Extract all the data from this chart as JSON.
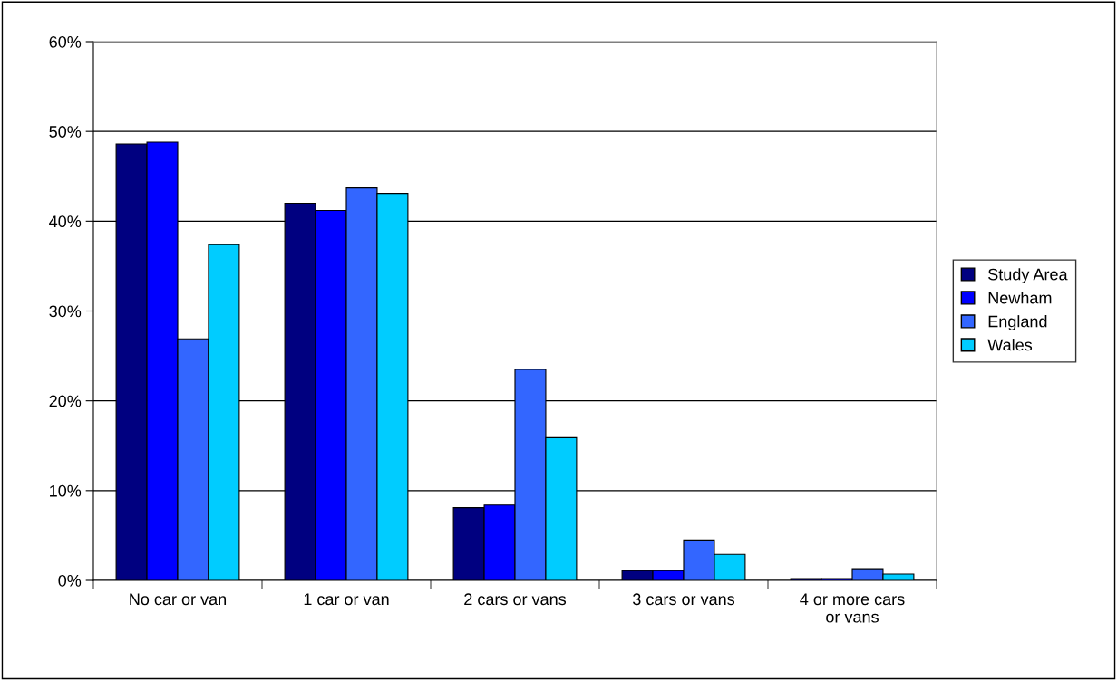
{
  "chart_data": {
    "type": "bar",
    "categories": [
      "No car or van",
      "1 car or van",
      "2 cars or vans",
      "3 cars or vans",
      "4 or more cars\nor vans"
    ],
    "series": [
      {
        "name": "Study Area",
        "color": "#000080",
        "values": [
          48.6,
          42.0,
          8.1,
          1.1,
          0.2
        ]
      },
      {
        "name": "Newham",
        "color": "#0000ff",
        "values": [
          48.8,
          41.2,
          8.4,
          1.1,
          0.2
        ]
      },
      {
        "name": "England",
        "color": "#3366ff",
        "values": [
          26.9,
          43.7,
          23.5,
          4.5,
          1.3
        ]
      },
      {
        "name": "Wales",
        "color": "#00ccff",
        "values": [
          37.4,
          43.1,
          15.9,
          2.9,
          0.7
        ]
      }
    ],
    "ylim": [
      0,
      60
    ],
    "yticks": [
      {
        "value": 0,
        "label": "0%"
      },
      {
        "value": 10,
        "label": "10%"
      },
      {
        "value": 20,
        "label": "20%"
      },
      {
        "value": 30,
        "label": "30%"
      },
      {
        "value": 40,
        "label": "40%"
      },
      {
        "value": 50,
        "label": "50%"
      },
      {
        "value": 60,
        "label": "60%"
      }
    ],
    "grid": "y",
    "legend": "right"
  }
}
